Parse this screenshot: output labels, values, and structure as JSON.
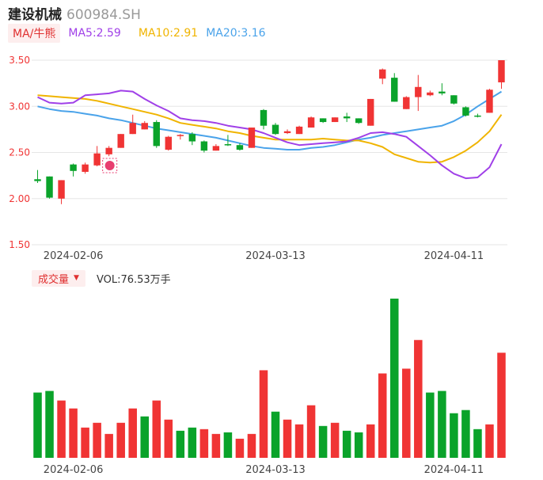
{
  "header": {
    "name": "建设机械",
    "code": "600984.SH"
  },
  "ma": {
    "tab_label": "MA/牛熊",
    "items": [
      {
        "label": "MA5:2.59",
        "color": "#a040e8"
      },
      {
        "label": "MA10:2.91",
        "color": "#f0b400"
      },
      {
        "label": "MA20:3.16",
        "color": "#4aa3ea"
      }
    ]
  },
  "volume": {
    "tab_label": "成交量",
    "caret": "▼",
    "vol_label": "VOL:76.53万手"
  },
  "colors": {
    "up": "#f03434",
    "down": "#0aa32a",
    "grid": "#e6e6e6",
    "axis_text": "#444444",
    "badge": "#e83e70"
  },
  "chart_data": {
    "type": "candlestick",
    "price_axis": {
      "ticks": [
        "3.50",
        "3.00",
        "2.50",
        "2.00",
        "1.50"
      ],
      "values": [
        3.5,
        3.0,
        2.5,
        2.0,
        1.5
      ],
      "ylim": [
        1.5,
        3.5
      ]
    },
    "x_tick_labels": [
      "2024-02-06",
      "2024-03-13",
      "2024-04-11"
    ],
    "x_tick_indices": [
      3,
      20,
      35
    ],
    "candles": [
      {
        "o": 2.21,
        "c": 2.19,
        "h": 2.31,
        "l": 2.17
      },
      {
        "o": 2.24,
        "c": 2.01,
        "h": 2.24,
        "l": 2.0
      },
      {
        "o": 2.0,
        "c": 2.2,
        "h": 2.2,
        "l": 1.94
      },
      {
        "o": 2.37,
        "c": 2.3,
        "h": 2.38,
        "l": 2.24
      },
      {
        "o": 2.29,
        "c": 2.37,
        "h": 2.39,
        "l": 2.27
      },
      {
        "o": 2.36,
        "c": 2.49,
        "h": 2.57,
        "l": 2.35
      },
      {
        "o": 2.48,
        "c": 2.55,
        "h": 2.57,
        "l": 2.46
      },
      {
        "o": 2.55,
        "c": 2.7,
        "h": 2.7,
        "l": 2.55
      },
      {
        "o": 2.7,
        "c": 2.82,
        "h": 2.91,
        "l": 2.7
      },
      {
        "o": 2.75,
        "c": 2.82,
        "h": 2.84,
        "l": 2.75
      },
      {
        "o": 2.83,
        "c": 2.57,
        "h": 2.85,
        "l": 2.55
      },
      {
        "o": 2.53,
        "c": 2.67,
        "h": 2.68,
        "l": 2.52
      },
      {
        "o": 2.68,
        "c": 2.69,
        "h": 2.7,
        "l": 2.64
      },
      {
        "o": 2.7,
        "c": 2.62,
        "h": 2.72,
        "l": 2.58
      },
      {
        "o": 2.62,
        "c": 2.52,
        "h": 2.63,
        "l": 2.5
      },
      {
        "o": 2.52,
        "c": 2.57,
        "h": 2.59,
        "l": 2.52
      },
      {
        "o": 2.59,
        "c": 2.58,
        "h": 2.69,
        "l": 2.57
      },
      {
        "o": 2.58,
        "c": 2.53,
        "h": 2.6,
        "l": 2.52
      },
      {
        "o": 2.55,
        "c": 2.77,
        "h": 2.77,
        "l": 2.55
      },
      {
        "o": 2.96,
        "c": 2.79,
        "h": 2.97,
        "l": 2.75
      },
      {
        "o": 2.8,
        "c": 2.7,
        "h": 2.82,
        "l": 2.69
      },
      {
        "o": 2.71,
        "c": 2.73,
        "h": 2.75,
        "l": 2.7
      },
      {
        "o": 2.7,
        "c": 2.78,
        "h": 2.79,
        "l": 2.7
      },
      {
        "o": 2.77,
        "c": 2.88,
        "h": 2.89,
        "l": 2.77
      },
      {
        "o": 2.87,
        "c": 2.83,
        "h": 2.87,
        "l": 2.82
      },
      {
        "o": 2.83,
        "c": 2.88,
        "h": 2.88,
        "l": 2.83
      },
      {
        "o": 2.89,
        "c": 2.87,
        "h": 2.93,
        "l": 2.83
      },
      {
        "o": 2.87,
        "c": 2.82,
        "h": 2.87,
        "l": 2.81
      },
      {
        "o": 2.79,
        "c": 3.08,
        "h": 3.08,
        "l": 2.79
      },
      {
        "o": 3.3,
        "c": 3.4,
        "h": 3.41,
        "l": 3.24
      },
      {
        "o": 3.31,
        "c": 3.05,
        "h": 3.36,
        "l": 3.05
      },
      {
        "o": 2.97,
        "c": 3.1,
        "h": 3.11,
        "l": 2.97
      },
      {
        "o": 3.1,
        "c": 3.21,
        "h": 3.34,
        "l": 2.95
      },
      {
        "o": 3.12,
        "c": 3.15,
        "h": 3.17,
        "l": 3.11
      },
      {
        "o": 3.16,
        "c": 3.14,
        "h": 3.25,
        "l": 3.12
      },
      {
        "o": 3.12,
        "c": 3.03,
        "h": 3.12,
        "l": 3.02
      },
      {
        "o": 2.99,
        "c": 2.9,
        "h": 3.0,
        "l": 2.89
      },
      {
        "o": 2.9,
        "c": 2.89,
        "h": 2.92,
        "l": 2.88
      },
      {
        "o": 2.93,
        "c": 3.18,
        "h": 3.19,
        "l": 2.93
      },
      {
        "o": 3.26,
        "c": 3.5,
        "h": 3.5,
        "l": 3.19
      }
    ],
    "ma5": [
      3.1,
      3.04,
      3.03,
      3.04,
      3.12,
      3.13,
      3.14,
      3.17,
      3.16,
      3.08,
      3.01,
      2.95,
      2.87,
      2.85,
      2.84,
      2.82,
      2.79,
      2.77,
      2.75,
      2.71,
      2.66,
      2.61,
      2.58,
      2.59,
      2.6,
      2.61,
      2.62,
      2.66,
      2.71,
      2.72,
      2.7,
      2.67,
      2.57,
      2.47,
      2.36,
      2.27,
      2.22,
      2.23,
      2.34,
      2.59
    ],
    "ma10": [
      3.12,
      3.11,
      3.1,
      3.09,
      3.08,
      3.06,
      3.03,
      3.0,
      2.97,
      2.94,
      2.91,
      2.87,
      2.82,
      2.8,
      2.78,
      2.76,
      2.73,
      2.71,
      2.68,
      2.66,
      2.64,
      2.64,
      2.64,
      2.64,
      2.65,
      2.64,
      2.63,
      2.63,
      2.6,
      2.56,
      2.48,
      2.44,
      2.4,
      2.39,
      2.4,
      2.45,
      2.52,
      2.61,
      2.73,
      2.91
    ],
    "ma20": [
      3.0,
      2.97,
      2.95,
      2.94,
      2.92,
      2.9,
      2.87,
      2.85,
      2.82,
      2.79,
      2.76,
      2.74,
      2.72,
      2.7,
      2.68,
      2.66,
      2.63,
      2.6,
      2.57,
      2.55,
      2.54,
      2.53,
      2.53,
      2.55,
      2.56,
      2.58,
      2.61,
      2.64,
      2.66,
      2.69,
      2.71,
      2.73,
      2.75,
      2.77,
      2.79,
      2.84,
      2.91,
      3.0,
      3.08,
      3.16
    ],
    "volume_values": [
      0.41,
      0.42,
      0.36,
      0.31,
      0.19,
      0.22,
      0.15,
      0.22,
      0.31,
      0.26,
      0.36,
      0.24,
      0.17,
      0.19,
      0.18,
      0.15,
      0.16,
      0.12,
      0.15,
      0.55,
      0.29,
      0.24,
      0.21,
      0.33,
      0.2,
      0.22,
      0.17,
      0.16,
      0.21,
      0.53,
      1.0,
      0.56,
      0.74,
      0.41,
      0.42,
      0.28,
      0.3,
      0.18,
      0.21,
      0.66
    ],
    "volume_up": [
      false,
      false,
      true,
      true,
      true,
      true,
      true,
      true,
      true,
      false,
      true,
      true,
      false,
      false,
      true,
      true,
      false,
      true,
      true,
      true,
      false,
      true,
      true,
      true,
      false,
      true,
      false,
      false,
      true,
      true,
      false,
      true,
      true,
      false,
      false,
      false,
      false,
      false,
      true,
      true
    ]
  }
}
